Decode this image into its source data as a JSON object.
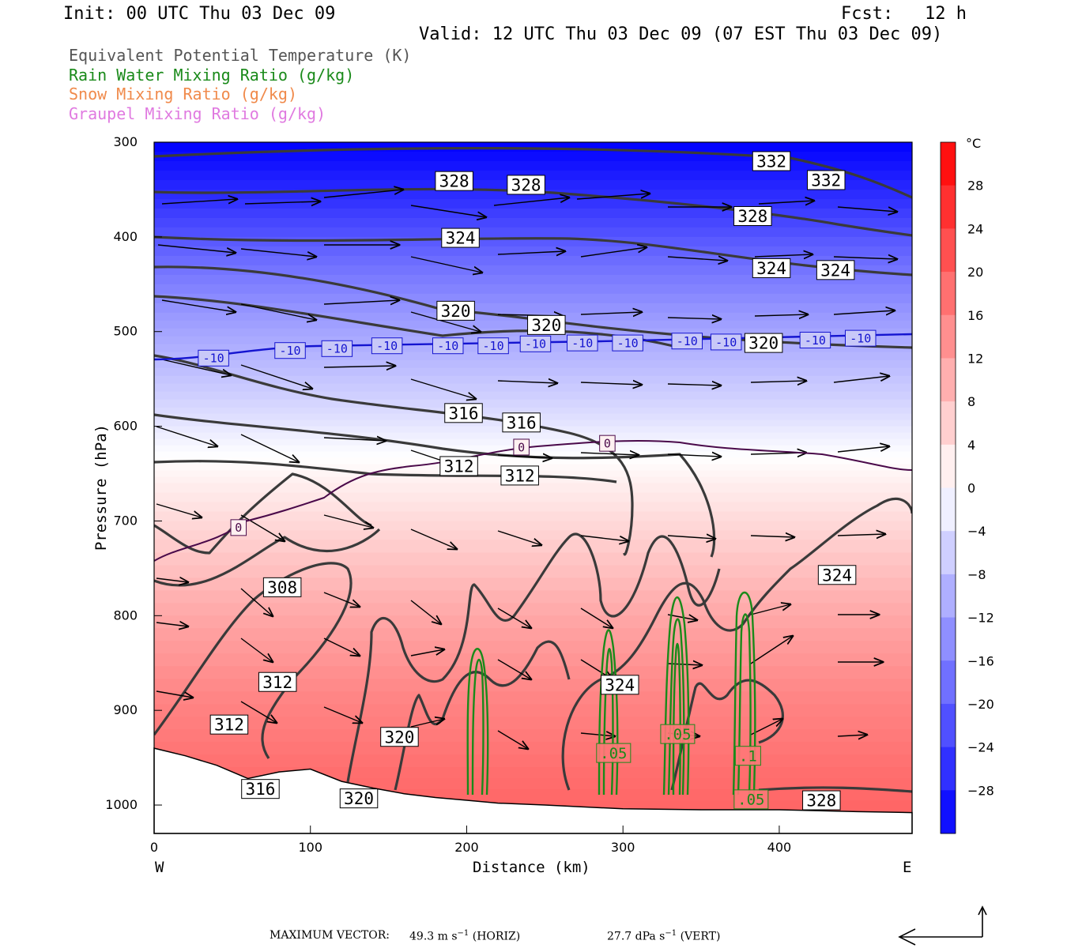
{
  "header": {
    "init": "Init: 00 UTC Thu 03 Dec 09",
    "fcst": "Fcst:   12 h",
    "valid": "Valid: 12 UTC Thu 03 Dec 09 (07 EST Thu 03 Dec 09)"
  },
  "legend": [
    {
      "label": "Equivalent Potential Temperature (K)",
      "color": "#555555"
    },
    {
      "label": "Rain Water Mixing Ratio (g/kg)",
      "color": "#1a8a1a"
    },
    {
      "label": "Snow Mixing Ratio (g/kg)",
      "color": "#f08a4b"
    },
    {
      "label": "Graupel Mixing Ratio (g/kg)",
      "color": "#e07ae0"
    }
  ],
  "chart_data": {
    "type": "cross-section",
    "xlabel": "Distance (km)",
    "ylabel": "Pressure (hPa)",
    "x_ticks": [
      0,
      100,
      200,
      300,
      400
    ],
    "y_ticks": [
      300,
      400,
      500,
      600,
      700,
      800,
      900,
      1000
    ],
    "xlim": [
      0,
      485
    ],
    "ylim": [
      1030,
      300
    ],
    "x_end_labels": {
      "left": "W",
      "right": "E"
    },
    "colorbar": {
      "unit": "°C",
      "ticks": [
        28,
        24,
        20,
        16,
        12,
        8,
        4,
        0,
        -4,
        -8,
        -12,
        -16,
        -20,
        -24,
        -28
      ],
      "tick_labels": [
        "28",
        "24",
        "20",
        "16",
        "12",
        "8",
        "4",
        "0",
        "−4",
        "−8",
        "−12",
        "−16",
        "−20",
        "−24",
        "−28"
      ],
      "range": [
        -32,
        32
      ]
    },
    "temperature_field": [
      {
        "p": 300,
        "t": -32
      },
      {
        "p": 360,
        "t": -26
      },
      {
        "p": 420,
        "t": -19
      },
      {
        "p": 480,
        "t": -13
      },
      {
        "p": 530,
        "t": -9
      },
      {
        "p": 580,
        "t": -5
      },
      {
        "p": 620,
        "t": -1
      },
      {
        "p": 660,
        "t": 2
      },
      {
        "p": 720,
        "t": 6
      },
      {
        "p": 800,
        "t": 11
      },
      {
        "p": 880,
        "t": 15
      },
      {
        "p": 960,
        "t": 18
      },
      {
        "p": 1030,
        "t": 20
      }
    ],
    "theta_e_labels": [
      {
        "v": "332",
        "x": 395,
        "p": 320
      },
      {
        "v": "332",
        "x": 430,
        "p": 340
      },
      {
        "v": "328",
        "x": 192,
        "p": 341
      },
      {
        "v": "328",
        "x": 238,
        "p": 345
      },
      {
        "v": "328",
        "x": 383,
        "p": 378
      },
      {
        "v": "324",
        "x": 196,
        "p": 401
      },
      {
        "v": "324",
        "x": 395,
        "p": 433
      },
      {
        "v": "324",
        "x": 436,
        "p": 435
      },
      {
        "v": "320",
        "x": 193,
        "p": 478
      },
      {
        "v": "320",
        "x": 251,
        "p": 493
      },
      {
        "v": "320",
        "x": 390,
        "p": 512
      },
      {
        "v": "316",
        "x": 198,
        "p": 586
      },
      {
        "v": "316",
        "x": 235,
        "p": 596
      },
      {
        "v": "312",
        "x": 195,
        "p": 642
      },
      {
        "v": "312",
        "x": 234,
        "p": 652
      },
      {
        "v": "308",
        "x": 82,
        "p": 770
      },
      {
        "v": "312",
        "x": 79,
        "p": 870
      },
      {
        "v": "312",
        "x": 48,
        "p": 915
      },
      {
        "v": "316",
        "x": 68,
        "p": 983
      },
      {
        "v": "320",
        "x": 157,
        "p": 928
      },
      {
        "v": "320",
        "x": 131,
        "p": 993
      },
      {
        "v": "324",
        "x": 298,
        "p": 873
      },
      {
        "v": "324",
        "x": 437,
        "p": 757
      },
      {
        "v": "328",
        "x": 427,
        "p": 995
      }
    ],
    "isotherm_labels": [
      {
        "v": "-10",
        "x": 38,
        "p": 528
      },
      {
        "v": "-10",
        "x": 87,
        "p": 520
      },
      {
        "v": "-10",
        "x": 117,
        "p": 518
      },
      {
        "v": "-10",
        "x": 149,
        "p": 515
      },
      {
        "v": "-10",
        "x": 188,
        "p": 515
      },
      {
        "v": "-10",
        "x": 217,
        "p": 515
      },
      {
        "v": "-10",
        "x": 244,
        "p": 513
      },
      {
        "v": "-10",
        "x": 274,
        "p": 512
      },
      {
        "v": "-10",
        "x": 303,
        "p": 512
      },
      {
        "v": "-10",
        "x": 341,
        "p": 510
      },
      {
        "v": "-10",
        "x": 366,
        "p": 511
      },
      {
        "v": "-10",
        "x": 423,
        "p": 509
      },
      {
        "v": "-10",
        "x": 452,
        "p": 507
      },
      {
        "v": "0",
        "x": 235,
        "p": 622
      },
      {
        "v": "0",
        "x": 290,
        "p": 618
      },
      {
        "v": "0",
        "x": 54,
        "p": 707
      }
    ],
    "rain_labels": [
      {
        "v": ".05",
        "x": 294,
        "p": 945
      },
      {
        "v": ".05",
        "x": 335,
        "p": 925
      },
      {
        "v": ".1",
        "x": 380,
        "p": 948
      },
      {
        "v": ".05",
        "x": 382,
        "p": 994
      }
    ],
    "footer": {
      "max_vector_label": "MAXIMUM VECTOR:",
      "horiz_value": "49.3 m s",
      "horiz_exp": "−1",
      "horiz_tag": "(HORIZ)",
      "vert_value": "27.7 dPa s",
      "vert_exp": "−1",
      "vert_tag": "(VERT)"
    }
  }
}
